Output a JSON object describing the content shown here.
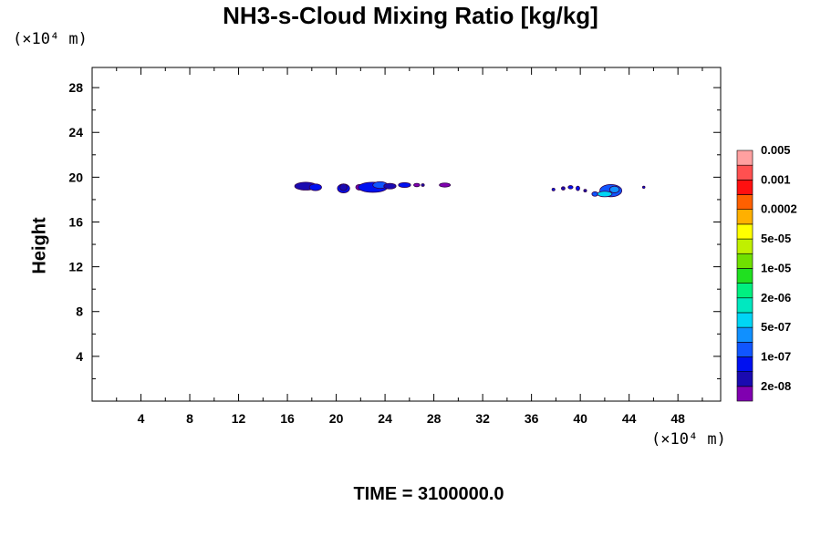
{
  "chart_data": {
    "type": "heatmap",
    "title": "NH3-s-Cloud Mixing Ratio [kg/kg]",
    "ylabel": "Height",
    "x_unit_label": "(×10⁴ m)",
    "y_unit_label": "(×10⁴ m)",
    "time_label": "TIME = 3100000.0",
    "xlim": [
      0,
      51.5
    ],
    "ylim": [
      0,
      29.8
    ],
    "x_ticks": [
      4,
      8,
      12,
      16,
      20,
      24,
      28,
      32,
      36,
      40,
      44,
      48
    ],
    "y_ticks": [
      4,
      8,
      12,
      16,
      20,
      24,
      28
    ],
    "colorbar": {
      "colors": [
        "#8000b0",
        "#1a0ab0",
        "#0010f0",
        "#1055ff",
        "#1090ff",
        "#00d5f5",
        "#00e8c0",
        "#00f080",
        "#20e020",
        "#70e000",
        "#c0f000",
        "#ffff00",
        "#ffb000",
        "#ff6000",
        "#ff1010",
        "#ff5050",
        "#ffa0a0"
      ],
      "labels": [
        "2e-08",
        "1e-07",
        "5e-07",
        "2e-06",
        "1e-05",
        "5e-05",
        "0.0002",
        "0.001",
        "0.005"
      ]
    },
    "features": [
      {
        "x": 17.5,
        "y": 19.2,
        "rx": 0.9,
        "ry": 0.35,
        "level": 1
      },
      {
        "x": 18.3,
        "y": 19.1,
        "rx": 0.5,
        "ry": 0.3,
        "level": 2
      },
      {
        "x": 20.6,
        "y": 19.0,
        "rx": 0.5,
        "ry": 0.4,
        "level": 2
      },
      {
        "x": 20.6,
        "y": 19.1,
        "rx": 0.3,
        "ry": 0.3,
        "level": 1
      },
      {
        "x": 21.9,
        "y": 19.1,
        "rx": 0.3,
        "ry": 0.25,
        "level": 0
      },
      {
        "x": 23.0,
        "y": 19.1,
        "rx": 1.2,
        "ry": 0.45,
        "level": 2
      },
      {
        "x": 23.6,
        "y": 19.3,
        "rx": 0.6,
        "ry": 0.3,
        "level": 3
      },
      {
        "x": 24.4,
        "y": 19.2,
        "rx": 0.5,
        "ry": 0.25,
        "level": 1
      },
      {
        "x": 25.6,
        "y": 19.3,
        "rx": 0.5,
        "ry": 0.22,
        "level": 2
      },
      {
        "x": 26.6,
        "y": 19.3,
        "rx": 0.25,
        "ry": 0.15,
        "level": 0
      },
      {
        "x": 27.1,
        "y": 19.3,
        "rx": 0.12,
        "ry": 0.12,
        "level": 1
      },
      {
        "x": 28.9,
        "y": 19.3,
        "rx": 0.45,
        "ry": 0.18,
        "level": 0
      },
      {
        "x": 37.8,
        "y": 18.9,
        "rx": 0.12,
        "ry": 0.12,
        "level": 2
      },
      {
        "x": 38.6,
        "y": 19.0,
        "rx": 0.15,
        "ry": 0.15,
        "level": 1
      },
      {
        "x": 39.2,
        "y": 19.1,
        "rx": 0.2,
        "ry": 0.15,
        "level": 2
      },
      {
        "x": 39.8,
        "y": 19.0,
        "rx": 0.15,
        "ry": 0.2,
        "level": 2
      },
      {
        "x": 40.4,
        "y": 18.8,
        "rx": 0.12,
        "ry": 0.12,
        "level": 1
      },
      {
        "x": 41.2,
        "y": 18.5,
        "rx": 0.25,
        "ry": 0.2,
        "level": 3
      },
      {
        "x": 42.5,
        "y": 18.8,
        "rx": 0.9,
        "ry": 0.55,
        "level": 3
      },
      {
        "x": 42.0,
        "y": 18.5,
        "rx": 0.6,
        "ry": 0.25,
        "level": 5
      },
      {
        "x": 42.8,
        "y": 18.9,
        "rx": 0.4,
        "ry": 0.3,
        "level": 4
      },
      {
        "x": 45.2,
        "y": 19.1,
        "rx": 0.1,
        "ry": 0.1,
        "level": 2
      }
    ]
  }
}
